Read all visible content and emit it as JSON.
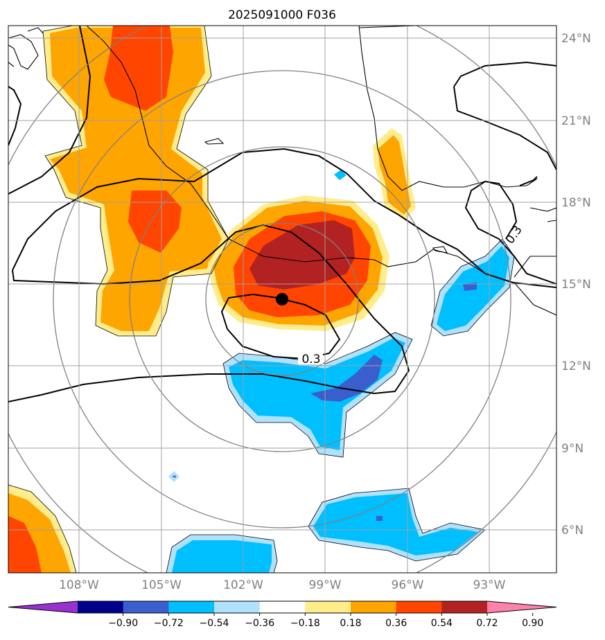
{
  "title": "2025091000 F036",
  "lat_labels": [
    "24°N",
    "21°N",
    "18°N",
    "15°N",
    "12°N",
    "9°N",
    "6°N"
  ],
  "lon_labels": [
    "108°W",
    "105°W",
    "102°W",
    "99°W",
    "96°W",
    "93°W"
  ],
  "contour_labels": [
    "0.3",
    "0.3"
  ],
  "colorbar": {
    "ticks": [
      "−0.90",
      "−0.72",
      "−0.54",
      "−0.36",
      "−0.18",
      "0.18",
      "0.36",
      "0.54",
      "0.72",
      "0.90"
    ],
    "colors": [
      "#9932cc",
      "#00008b",
      "#3a5fcd",
      "#00bfff",
      "#b0e2ff",
      "#ffffff",
      "#ffec8b",
      "#ffa500",
      "#ff4500",
      "#b22222",
      "#ff82ab"
    ]
  },
  "colors": {
    "dark_red": "#b22222",
    "red_orange": "#ff4500",
    "orange": "#ffa500",
    "light_yellow": "#ffec8b",
    "deep_sky_blue": "#00bfff",
    "light_blue": "#b0e2ff",
    "royal_blue": "#3a5fcd"
  }
}
